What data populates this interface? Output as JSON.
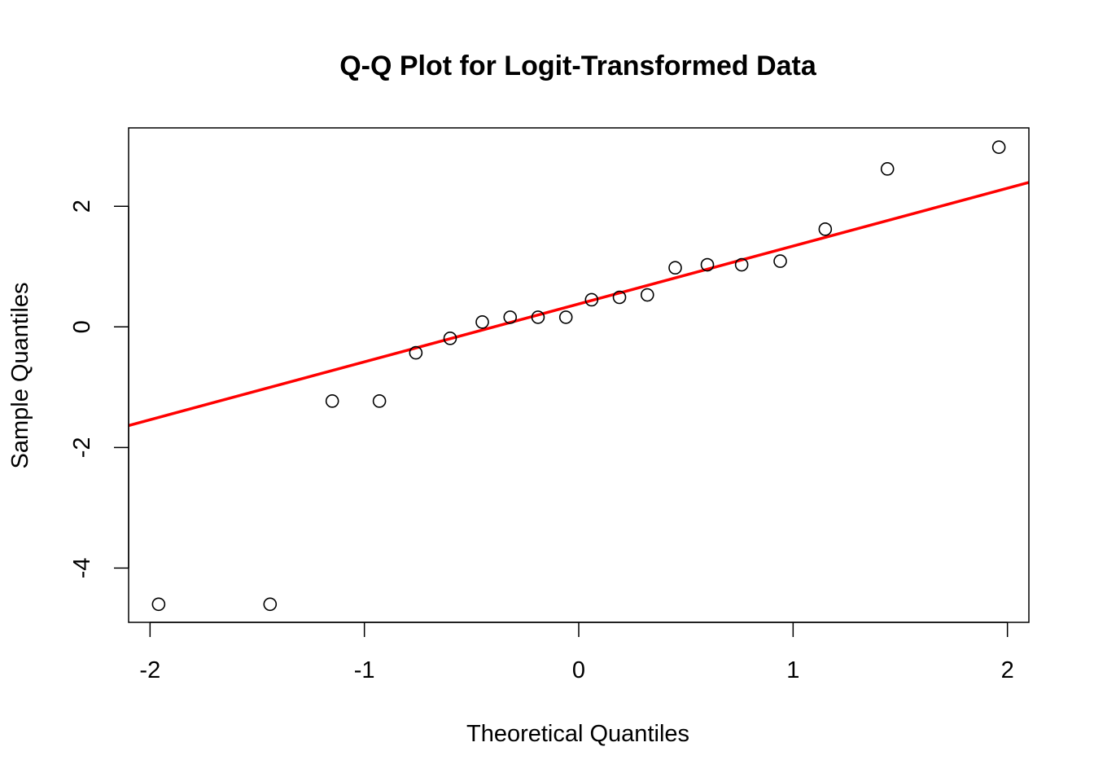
{
  "chart_data": {
    "type": "scatter",
    "title": "Q-Q Plot for Logit-Transformed Data",
    "xlabel": "Theoretical Quantiles",
    "ylabel": "Sample Quantiles",
    "xlim": [
      -2.1,
      2.1
    ],
    "ylim": [
      -4.9,
      3.3
    ],
    "x_ticks": [
      -2,
      -1,
      0,
      1,
      2
    ],
    "x_tick_labels": [
      "-2",
      "-1",
      "0",
      "1",
      "2"
    ],
    "y_ticks": [
      -4,
      -2,
      0,
      2
    ],
    "y_tick_labels": [
      "-4",
      "-2",
      "0",
      "2"
    ],
    "grid": false,
    "points": [
      {
        "x": -1.96,
        "y": -4.6
      },
      {
        "x": -1.44,
        "y": -4.6
      },
      {
        "x": -1.15,
        "y": -1.23
      },
      {
        "x": -0.93,
        "y": -1.23
      },
      {
        "x": -0.76,
        "y": -0.43
      },
      {
        "x": -0.6,
        "y": -0.19
      },
      {
        "x": -0.45,
        "y": 0.08
      },
      {
        "x": -0.32,
        "y": 0.16
      },
      {
        "x": -0.19,
        "y": 0.16
      },
      {
        "x": -0.06,
        "y": 0.16
      },
      {
        "x": 0.06,
        "y": 0.45
      },
      {
        "x": 0.19,
        "y": 0.49
      },
      {
        "x": 0.32,
        "y": 0.53
      },
      {
        "x": 0.45,
        "y": 0.98
      },
      {
        "x": 0.6,
        "y": 1.03
      },
      {
        "x": 0.76,
        "y": 1.03
      },
      {
        "x": 0.94,
        "y": 1.09
      },
      {
        "x": 1.15,
        "y": 1.62
      },
      {
        "x": 1.44,
        "y": 2.62
      },
      {
        "x": 1.96,
        "y": 2.98
      }
    ],
    "reference_line": {
      "color": "#ff0000",
      "intercept": 0.38,
      "slope": 0.96
    },
    "point_style": "open-circle"
  }
}
